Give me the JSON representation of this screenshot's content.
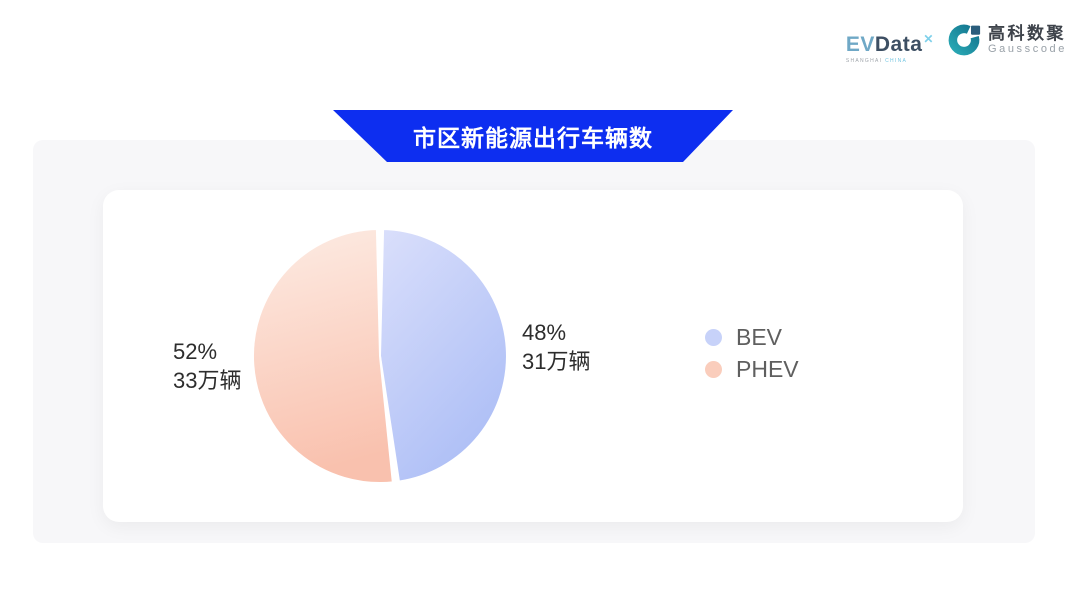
{
  "page": {
    "background": "#ffffff"
  },
  "header": {
    "evdata": {
      "ev": "EV",
      "data": "Data",
      "sup": "✕",
      "sub1": "SHANGHAI",
      "sub2": "CHINA"
    },
    "gausscode": {
      "cn": "高科数聚",
      "en": "Gausscode",
      "icon_color": "#1e93a8",
      "icon_square_color": "#2a5d7c"
    }
  },
  "banner": {
    "title": "市区新能源出行车辆数",
    "color": "#0d2ef0"
  },
  "chart_data": {
    "type": "pie",
    "title": "市区新能源出行车辆数",
    "unit": "万辆",
    "start_angle_deg": 0,
    "direction": "clockwise",
    "legend_position": "right",
    "series": [
      {
        "name": "BEV",
        "percent": 48,
        "percent_label": "48%",
        "value": 31,
        "count_label": "31万辆",
        "color_light": "#dadffb",
        "color_dark": "#aebff6",
        "legend_color": "#c7d2f9"
      },
      {
        "name": "PHEV",
        "percent": 52,
        "percent_label": "52%",
        "value": 33,
        "count_label": "33万辆",
        "color_light": "#fdece4",
        "color_dark": "#f9c1ae",
        "legend_color": "#facdbc"
      }
    ]
  }
}
